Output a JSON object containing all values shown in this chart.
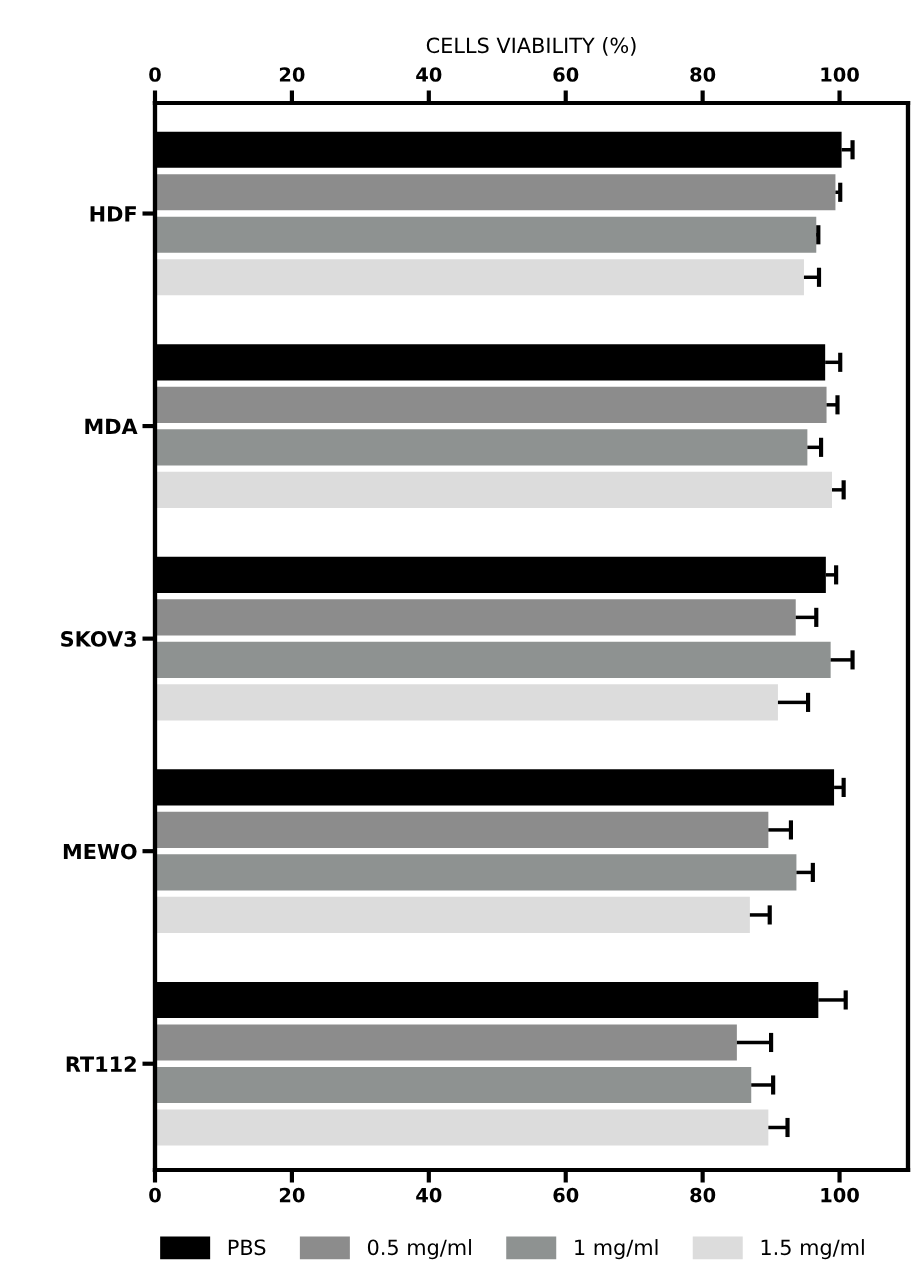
{
  "chart_data": {
    "type": "bar",
    "orientation": "horizontal",
    "x2label": "CELLS VIABILITY (%)",
    "categories": [
      "HDF",
      "MDA",
      "SKOV3",
      "MEWO",
      "RT112"
    ],
    "xlim": [
      0,
      110
    ],
    "xticks": [
      0,
      20,
      40,
      60,
      80,
      100
    ],
    "x2lim": [
      0,
      110
    ],
    "x2ticks": [
      0,
      20,
      40,
      60,
      80,
      100
    ],
    "series": [
      {
        "name": "PBS",
        "color": "#000000",
        "values": [
          100.3,
          97.9,
          98.0,
          99.2,
          96.9
        ],
        "errors": [
          [
            100.3,
            101.9
          ],
          [
            97.9,
            100.1
          ],
          [
            98.0,
            99.5
          ],
          [
            99.2,
            100.6
          ],
          [
            96.9,
            100.9
          ]
        ]
      },
      {
        "name": "0.5 mg/ml",
        "color": "#8c8c8c",
        "values": [
          99.4,
          98.1,
          93.6,
          89.6,
          85.0
        ],
        "errors": [
          [
            99.4,
            100.1
          ],
          [
            98.1,
            99.7
          ],
          [
            93.6,
            96.6
          ],
          [
            89.6,
            92.9
          ],
          [
            85.0,
            90.0
          ]
        ]
      },
      {
        "name": "1 mg/ml",
        "color": "#8e9291",
        "values": [
          96.6,
          95.3,
          98.7,
          93.7,
          87.1
        ],
        "errors": [
          [
            96.6,
            96.9
          ],
          [
            95.3,
            97.3
          ],
          [
            98.7,
            101.9
          ],
          [
            93.7,
            96.1
          ],
          [
            87.1,
            90.3
          ]
        ]
      },
      {
        "name": "1.5 mg/ml",
        "color": "#dcdcdc",
        "values": [
          94.8,
          98.9,
          91.0,
          86.9,
          89.6
        ],
        "errors": [
          [
            94.8,
            97.0
          ],
          [
            98.9,
            100.6
          ],
          [
            91.0,
            95.4
          ],
          [
            86.9,
            89.8
          ],
          [
            89.6,
            92.4
          ]
        ]
      }
    ],
    "legend": "bottom",
    "grid": false
  }
}
